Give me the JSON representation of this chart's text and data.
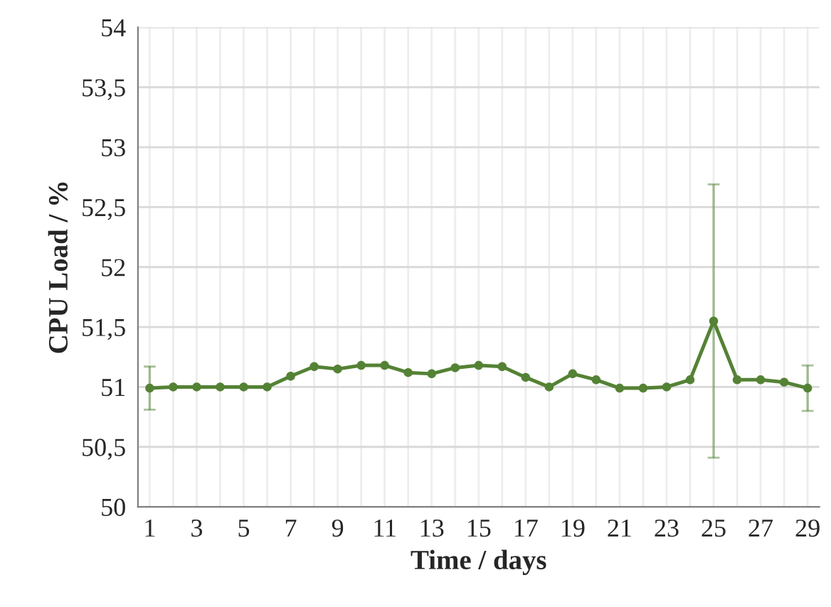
{
  "chart_data": {
    "type": "line",
    "xlabel": "Time / days",
    "ylabel": "CPU Load / %",
    "x": [
      1,
      2,
      3,
      4,
      5,
      6,
      7,
      8,
      9,
      10,
      11,
      12,
      13,
      14,
      15,
      16,
      17,
      18,
      19,
      20,
      21,
      22,
      23,
      24,
      25,
      26,
      27,
      28,
      29
    ],
    "series": [
      {
        "color": "#548235",
        "values": [
          50.99,
          51.0,
          51.0,
          51.0,
          51.0,
          51.0,
          51.09,
          51.17,
          51.15,
          51.18,
          51.18,
          51.12,
          51.11,
          51.16,
          51.18,
          51.17,
          51.08,
          51.0,
          51.11,
          51.06,
          50.99,
          50.99,
          51.0,
          51.06,
          51.55,
          51.06,
          51.06,
          51.04,
          50.99
        ],
        "errors": [
          0.18,
          null,
          null,
          null,
          null,
          null,
          null,
          null,
          null,
          null,
          null,
          null,
          null,
          null,
          null,
          null,
          null,
          null,
          null,
          null,
          null,
          null,
          null,
          null,
          1.14,
          null,
          null,
          null,
          0.19
        ]
      }
    ],
    "xlim": [
      0.5,
      29.5
    ],
    "xticks": [
      1,
      {
        "value": 2,
        "label": null
      },
      3,
      {
        "value": 4,
        "label": null
      },
      5,
      {
        "value": 6,
        "label": null
      },
      7,
      {
        "value": 8,
        "label": null
      },
      9,
      {
        "value": 10,
        "label": null
      },
      11,
      {
        "value": 12,
        "label": null
      },
      13,
      {
        "value": 14,
        "label": null
      },
      15,
      {
        "value": 16,
        "label": null
      },
      17,
      {
        "value": 18,
        "label": null
      },
      19,
      {
        "value": 20,
        "label": null
      },
      21,
      {
        "value": 22,
        "label": null
      },
      23,
      {
        "value": 24,
        "label": null
      },
      25,
      {
        "value": 26,
        "label": null
      },
      27,
      {
        "value": 28,
        "label": null
      },
      29
    ],
    "ylim": [
      50,
      54
    ],
    "yticks": [
      50,
      {
        "value": 50.5,
        "label": "50,5"
      },
      51,
      {
        "value": 51.5,
        "label": "51,5"
      },
      52,
      {
        "value": 52.5,
        "label": "52,5"
      },
      53,
      {
        "value": 53.5,
        "label": "53,5"
      },
      54
    ],
    "grid": true,
    "marker": "circle",
    "line_style": "solid"
  }
}
